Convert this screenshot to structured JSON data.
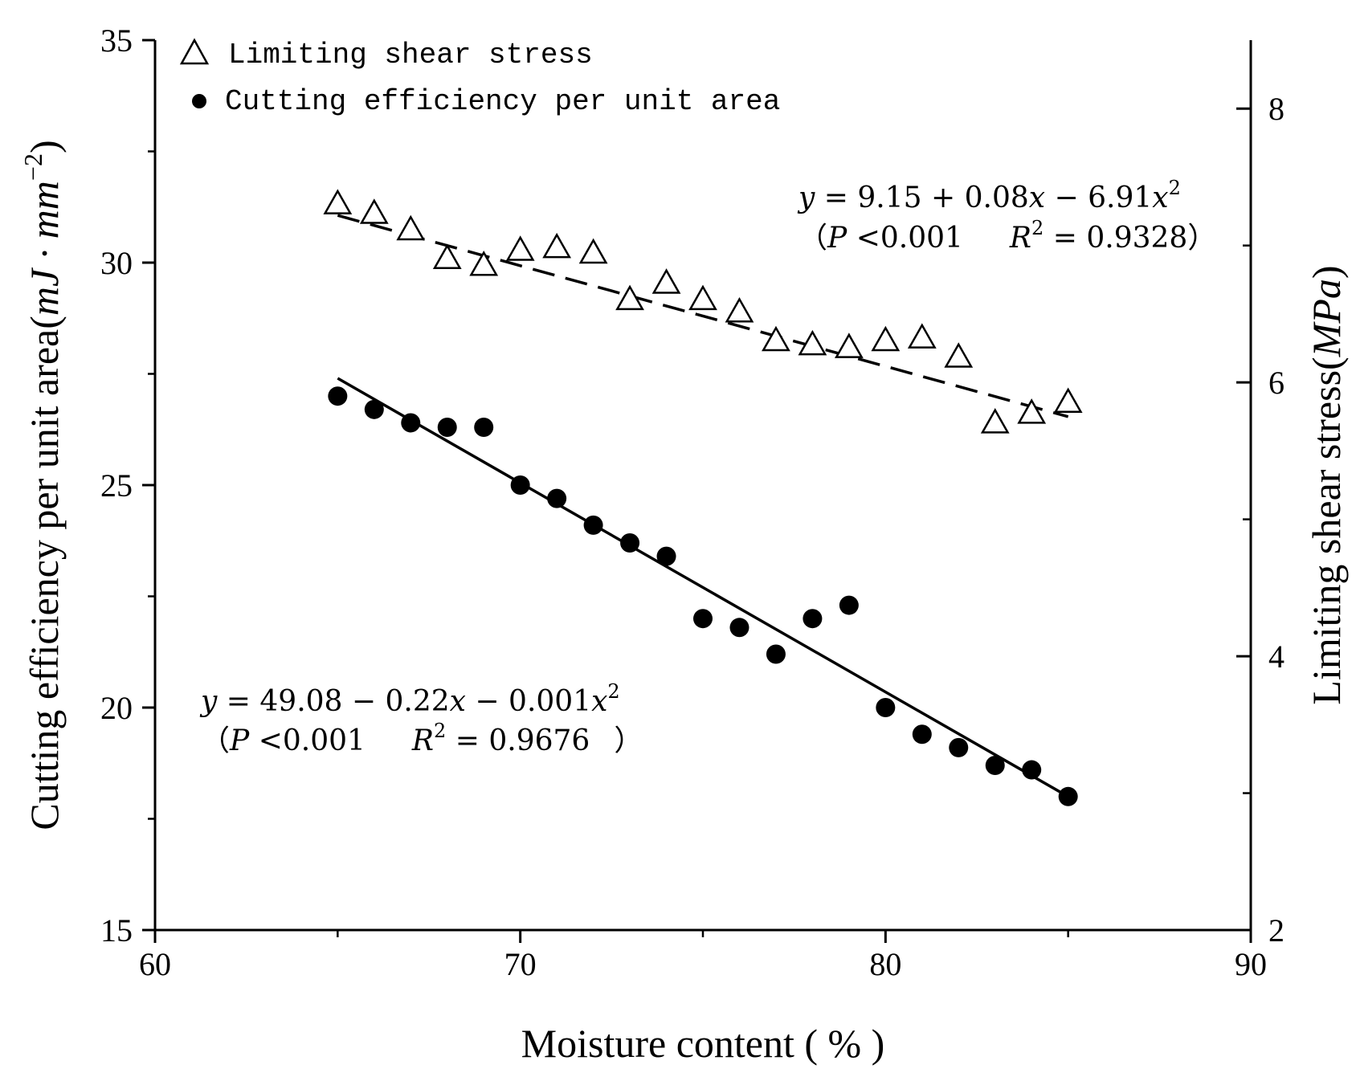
{
  "chart_data": {
    "type": "scatter",
    "xlabel": "Moisture content ( % )",
    "ylabel_left": "Cutting efficiency per unit area(mJ · mm⁻²)",
    "ylabel_left_parts": {
      "main": "Cutting efficiency per unit area(",
      "unit": "mJ · mm",
      "exp": "−2",
      "close": ")"
    },
    "ylabel_right": "Limiting shear stress(MPa)",
    "ylabel_right_parts": {
      "main": "Limiting shear stress(",
      "unit": "MPa",
      "close": ")"
    },
    "xlim": [
      60,
      90
    ],
    "ylim_left": [
      15,
      35
    ],
    "ylim_right": [
      2,
      8.5
    ],
    "x_ticks": [
      60,
      70,
      80,
      90
    ],
    "y_ticks_left": [
      15,
      20,
      25,
      30,
      35
    ],
    "y_ticks_right": [
      2,
      4,
      6,
      8
    ],
    "series": [
      {
        "name": "Limiting shear stress",
        "marker": "open-triangle",
        "axis": "right",
        "x": [
          65,
          66,
          67,
          68,
          69,
          70,
          71,
          72,
          73,
          74,
          75,
          76,
          77,
          78,
          79,
          80,
          81,
          82,
          83,
          84,
          85
        ],
        "y": [
          7.31,
          7.24,
          7.12,
          6.91,
          6.86,
          6.97,
          6.99,
          6.95,
          6.61,
          6.73,
          6.61,
          6.52,
          6.31,
          6.28,
          6.26,
          6.31,
          6.33,
          6.19,
          5.71,
          5.78,
          5.86
        ],
        "fit": {
          "style": "dashed",
          "x_range": [
            65,
            85
          ],
          "y_range": [
            7.22,
            5.75
          ]
        }
      },
      {
        "name": "Cutting efficiency per unit area",
        "marker": "filled-circle",
        "axis": "left",
        "x": [
          65,
          66,
          67,
          68,
          69,
          70,
          71,
          72,
          73,
          74,
          75,
          76,
          77,
          78,
          79,
          80,
          81,
          82,
          83,
          84,
          85
        ],
        "y": [
          27.0,
          26.7,
          26.4,
          26.3,
          26.3,
          25.0,
          24.7,
          24.1,
          23.7,
          23.4,
          22.0,
          21.8,
          21.2,
          22.0,
          22.3,
          20.0,
          19.4,
          19.1,
          18.7,
          18.6,
          18.0
        ],
        "fit": {
          "style": "solid",
          "x_range": [
            65,
            85
          ],
          "y_range": [
            27.4,
            18.0
          ]
        }
      }
    ],
    "annotations": {
      "shear": {
        "line1": {
          "y": "y",
          "body": " = 9.15 + 0.08",
          "x": "x",
          "mid": " − 6.91",
          "x2": "x",
          "sup": "2"
        },
        "line2": {
          "open": "（",
          "P": "P",
          "pval": " <0.001",
          "R": "R",
          "sup": "2",
          "rval": " = 0.9328",
          "close": "）"
        }
      },
      "cutting": {
        "line1": {
          "y": "y",
          "body": " = 49.08 − 0.22",
          "x": "x",
          "mid": " − 0.001",
          "x2": "x",
          "sup": "2"
        },
        "line2": {
          "open": "（",
          "P": "P",
          "pval": " <0.001",
          "R": "R",
          "sup": "2",
          "rval": " = 0.9676",
          "close": "）"
        }
      }
    },
    "legend": [
      {
        "label": "Limiting shear stress",
        "marker": "open-triangle"
      },
      {
        "label": "Cutting efficiency per unit area",
        "marker": "filled-circle"
      }
    ],
    "colors": {
      "axis": "#000000",
      "marker": "#000000",
      "background": "#ffffff"
    }
  }
}
